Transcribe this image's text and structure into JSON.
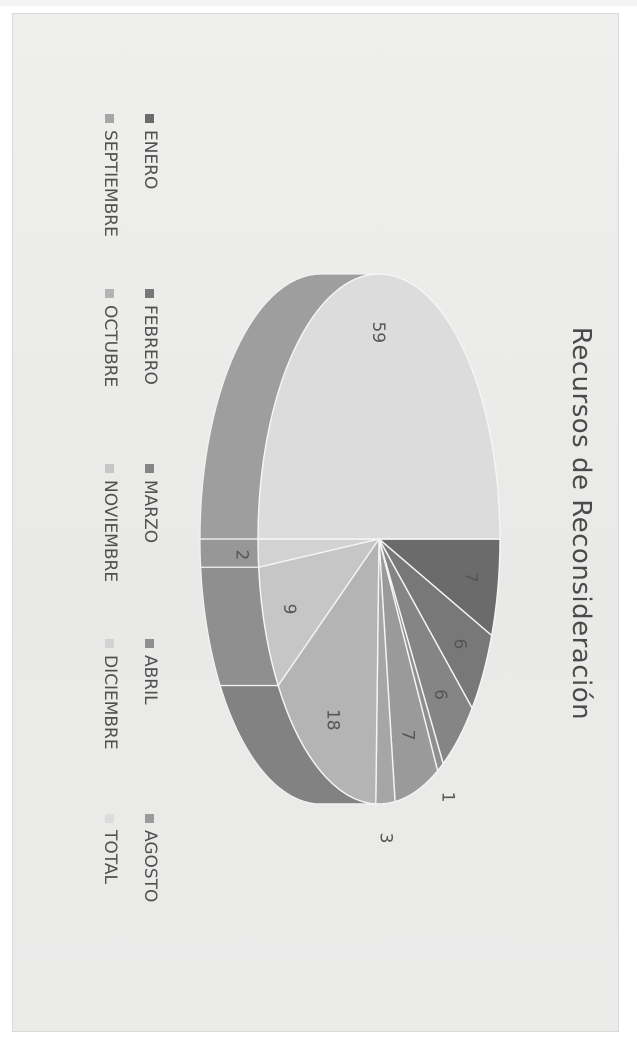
{
  "chart_data": {
    "type": "pie",
    "three_d": true,
    "orientation": "rotated 90 degrees clockwise",
    "title": "Recursos de Reconsideración",
    "slices": [
      {
        "label": "ENERO",
        "value": 7,
        "color": "#6b6b6b"
      },
      {
        "label": "FEBRERO",
        "value": 6,
        "color": "#787878"
      },
      {
        "label": "MARZO",
        "value": 6,
        "color": "#858585"
      },
      {
        "label": "ABRIL",
        "value": 1,
        "color": "#8f8f8f"
      },
      {
        "label": "AGOSTO",
        "value": 7,
        "color": "#9a9a9a"
      },
      {
        "label": "SEPTIEMBRE",
        "value": 3,
        "color": "#a6a6a6"
      },
      {
        "label": "OCTUBRE",
        "value": 18,
        "color": "#b4b4b4"
      },
      {
        "label": "NOVIEMBRE",
        "value": 9,
        "color": "#c6c6c6"
      },
      {
        "label": "DICIEMBRE",
        "value": 2,
        "color": "#d2d2d2"
      },
      {
        "label": "TOTAL",
        "value": 59,
        "color": "#dcdcdc"
      }
    ],
    "legend": {
      "placement": "bottom",
      "items": [
        "ENERO",
        "FEBRERO",
        "MARZO",
        "ABRIL",
        "AGOSTO",
        "SEPTIEMBRE",
        "OCTUBRE",
        "NOVIEMBRE",
        "DICIEMBRE",
        "TOTAL"
      ]
    }
  }
}
